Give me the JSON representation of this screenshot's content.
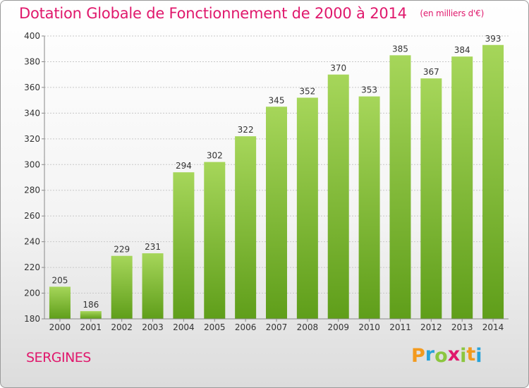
{
  "title": "Dotation Globale de Fonctionnement de 2000 à 2014",
  "subtitle": "(en milliers d'€)",
  "commune": "SERGINES",
  "logo": {
    "letters": [
      "P",
      "r",
      "o",
      "x",
      "i",
      "t",
      "i"
    ],
    "colors": [
      "#f39a1e",
      "#29a3d9",
      "#8cc63f",
      "#e0186c",
      "#8cc63f",
      "#f39a1e",
      "#29a3d9"
    ]
  },
  "colors": {
    "title": "#e0186c",
    "bar_light": "#a6d65a",
    "bar_dark": "#5f9e1a",
    "axis": "#888888",
    "grid": "#c8c8c8"
  },
  "chart_data": {
    "type": "bar",
    "categories": [
      "2000",
      "2001",
      "2002",
      "2003",
      "2004",
      "2005",
      "2006",
      "2007",
      "2008",
      "2009",
      "2010",
      "2011",
      "2012",
      "2013",
      "2014"
    ],
    "values": [
      205,
      186,
      229,
      231,
      294,
      302,
      322,
      345,
      352,
      370,
      353,
      385,
      367,
      384,
      393
    ],
    "ylim": [
      180,
      400
    ],
    "yticks": [
      180,
      200,
      220,
      240,
      260,
      280,
      300,
      320,
      340,
      360,
      380,
      400
    ],
    "grid": true,
    "data_labels": true
  }
}
